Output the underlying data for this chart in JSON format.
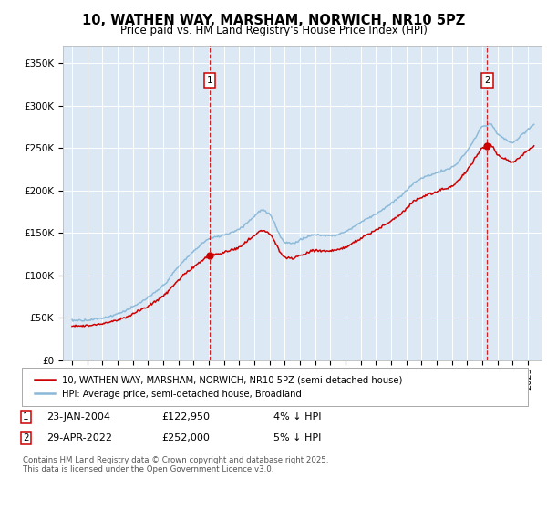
{
  "title": "10, WATHEN WAY, MARSHAM, NORWICH, NR10 5PZ",
  "subtitle": "Price paid vs. HM Land Registry's House Price Index (HPI)",
  "plot_bg_color": "#dce9f5",
  "y_ticks": [
    0,
    50000,
    100000,
    150000,
    200000,
    250000,
    300000,
    350000
  ],
  "y_tick_labels": [
    "£0",
    "£50K",
    "£100K",
    "£150K",
    "£200K",
    "£250K",
    "£300K",
    "£350K"
  ],
  "hpi_color": "#89b8d8",
  "price_color": "#cc0000",
  "marker1_x": 2004.06,
  "marker1_price": 122950,
  "marker2_x": 2022.33,
  "marker2_price": 252000,
  "legend1": "10, WATHEN WAY, MARSHAM, NORWICH, NR10 5PZ (semi-detached house)",
  "legend2": "HPI: Average price, semi-detached house, Broadland",
  "footnote": "Contains HM Land Registry data © Crown copyright and database right 2025.\nThis data is licensed under the Open Government Licence v3.0.",
  "ylim": [
    0,
    370000
  ]
}
